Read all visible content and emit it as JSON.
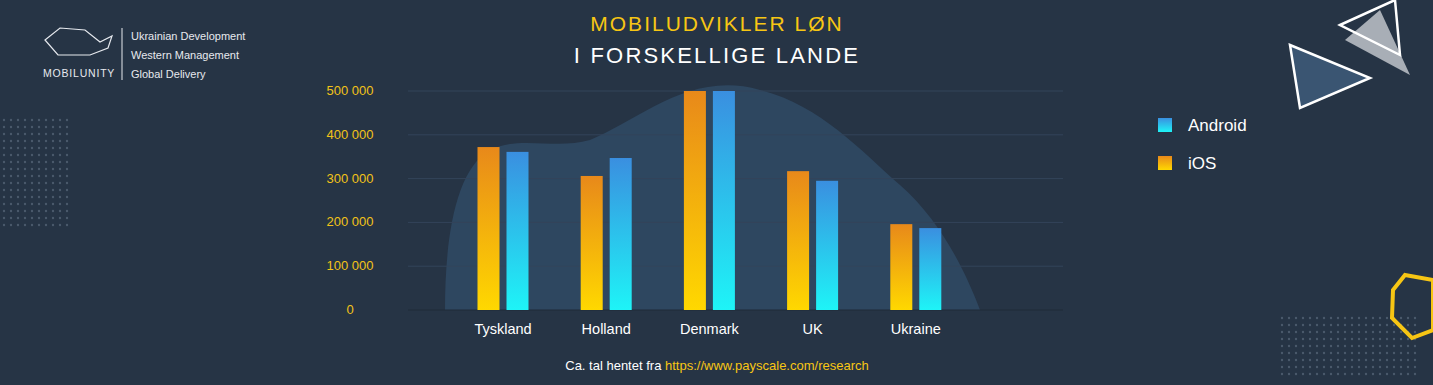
{
  "chart_data": {
    "type": "bar",
    "title": "MOBILUDVIKLER LØN",
    "subtitle": "I FORSKELLIGE LANDE",
    "categories": [
      "Tyskland",
      "Holland",
      "Denmark",
      "UK",
      "Ukraine"
    ],
    "series": [
      {
        "name": "iOS",
        "color": "#e8891a",
        "values": [
          372000,
          306000,
          500000,
          317000,
          196000
        ]
      },
      {
        "name": "Android",
        "color": "#3a8fe0",
        "values": [
          361000,
          347000,
          500000,
          295000,
          187000
        ]
      }
    ],
    "ylim": [
      0,
      500000
    ],
    "yticks": [
      0,
      {
        "value": 100000,
        "label": "100 000"
      },
      {
        "value": 200000,
        "label": "200 000"
      },
      {
        "value": 300000,
        "label": "300 000"
      },
      {
        "value": 400000,
        "label": "400 000"
      },
      {
        "value": 500000,
        "label": "500 000"
      }
    ],
    "grid": true,
    "legend": "right",
    "annotations": [
      "MOBILUNITY",
      "Ukrainian Development",
      "Western Management",
      "Global Delivery",
      "Ca. tal hentet fra",
      "https://www.payscale.com/research"
    ]
  }
}
